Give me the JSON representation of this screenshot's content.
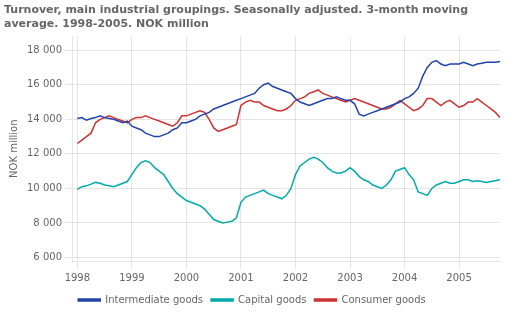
{
  "chart_data": {
    "type": "line",
    "title": [
      "Turnover, main industrial groupings. Seasonally adjusted. 3-month moving",
      "average. 1998-2005. NOK million"
    ],
    "ylabel": "NOK million",
    "x": [
      1998,
      1998.083333,
      1998.166667,
      1998.25,
      1998.333333,
      1998.416667,
      1998.5,
      1998.583333,
      1998.666667,
      1998.75,
      1998.833333,
      1998.916667,
      1999,
      1999.083333,
      1999.166667,
      1999.25,
      1999.333333,
      1999.416667,
      1999.5,
      1999.583333,
      1999.666667,
      1999.75,
      1999.833333,
      1999.916667,
      2000,
      2000.083333,
      2000.166667,
      2000.25,
      2000.333333,
      2000.416667,
      2000.5,
      2000.583333,
      2000.666667,
      2000.75,
      2000.833333,
      2000.916667,
      2001,
      2001.083333,
      2001.166667,
      2001.25,
      2001.333333,
      2001.416667,
      2001.5,
      2001.583333,
      2001.666667,
      2001.75,
      2001.833333,
      2001.916667,
      2002,
      2002.083333,
      2002.166667,
      2002.25,
      2002.333333,
      2002.416667,
      2002.5,
      2002.583333,
      2002.666667,
      2002.75,
      2002.833333,
      2002.916667,
      2003,
      2003.083333,
      2003.166667,
      2003.25,
      2003.333333,
      2003.416667,
      2003.5,
      2003.583333,
      2003.666667,
      2003.75,
      2003.833333,
      2003.916667,
      2004,
      2004.083333,
      2004.166667,
      2004.25,
      2004.333333,
      2004.416667,
      2004.5,
      2004.583333,
      2004.666667,
      2004.75,
      2004.833333,
      2004.916667,
      2005,
      2005.083333,
      2005.166667,
      2005.25,
      2005.333333,
      2005.416667,
      2005.5,
      2005.583333,
      2005.666667,
      2005.75
    ],
    "series": [
      {
        "name": "Intermediate goods",
        "color": "#2244aa",
        "values": [
          14050,
          14100,
          13950,
          14050,
          14100,
          14200,
          14100,
          14050,
          14000,
          13900,
          13800,
          13900,
          13600,
          13500,
          13400,
          13200,
          13100,
          13000,
          13000,
          13100,
          13200,
          13400,
          13500,
          13800,
          13800,
          13900,
          14000,
          14200,
          14300,
          14400,
          14600,
          14700,
          14800,
          14900,
          15000,
          15100,
          15200,
          15300,
          15400,
          15500,
          15800,
          16000,
          16100,
          15900,
          15800,
          15700,
          15600,
          15500,
          15200,
          15000,
          14900,
          14800,
          14900,
          15000,
          15100,
          15200,
          15200,
          15300,
          15200,
          15100,
          15100,
          14900,
          14300,
          14200,
          14300,
          14400,
          14500,
          14600,
          14700,
          14800,
          14900,
          15000,
          15200,
          15300,
          15500,
          15800,
          16500,
          17000,
          17300,
          17400,
          17200,
          17100,
          17200,
          17200,
          17200,
          17300,
          17200,
          17100,
          17200,
          17250,
          17300,
          17300,
          17300,
          17350
        ]
      },
      {
        "name": "Capital goods",
        "color": "#00aaaa",
        "values": [
          9950,
          10100,
          10150,
          10250,
          10350,
          10300,
          10200,
          10150,
          10100,
          10200,
          10300,
          10400,
          10800,
          11200,
          11500,
          11600,
          11500,
          11200,
          11000,
          10800,
          10400,
          10000,
          9700,
          9500,
          9300,
          9200,
          9100,
          9000,
          8800,
          8500,
          8200,
          8100,
          8000,
          8050,
          8100,
          8300,
          9200,
          9500,
          9600,
          9700,
          9800,
          9900,
          9700,
          9600,
          9500,
          9400,
          9600,
          10000,
          10800,
          11300,
          11500,
          11700,
          11800,
          11700,
          11500,
          11200,
          11000,
          10900,
          10900,
          11000,
          11200,
          11000,
          10700,
          10500,
          10400,
          10200,
          10100,
          10000,
          10200,
          10500,
          11000,
          11100,
          11200,
          10800,
          10500,
          9800,
          9700,
          9600,
          10000,
          10200,
          10300,
          10400,
          10300,
          10300,
          10400,
          10500,
          10500,
          10400,
          10450,
          10400,
          10350,
          10400,
          10450,
          10500
        ]
      },
      {
        "name": "Consumer goods",
        "color": "#cc3333",
        "values": [
          12600,
          12800,
          13000,
          13200,
          13800,
          14000,
          14100,
          14200,
          14100,
          14000,
          13900,
          13800,
          14000,
          14100,
          14100,
          14200,
          14100,
          14000,
          13900,
          13800,
          13700,
          13600,
          13800,
          14200,
          14200,
          14300,
          14400,
          14500,
          14400,
          14000,
          13500,
          13300,
          13400,
          13500,
          13600,
          13700,
          14800,
          15000,
          15100,
          15000,
          15000,
          14800,
          14700,
          14600,
          14500,
          14500,
          14600,
          14800,
          15100,
          15200,
          15300,
          15500,
          15600,
          15700,
          15500,
          15400,
          15300,
          15200,
          15100,
          15000,
          15100,
          15200,
          15100,
          15000,
          14900,
          14800,
          14700,
          14600,
          14600,
          14700,
          14900,
          15100,
          14900,
          14700,
          14500,
          14600,
          14800,
          15200,
          15200,
          15000,
          14800,
          15000,
          15100,
          14900,
          14700,
          14800,
          15000,
          15000,
          15200,
          15000,
          14800,
          14600,
          14400,
          14100
        ]
      }
    ],
    "xlim": [
      1997.92,
      2005.75
    ],
    "xticks": [
      1998,
      1999,
      2000,
      2001,
      2002,
      2003,
      2004,
      2005
    ],
    "ylim": [
      5800,
      18800
    ],
    "yticks": [
      {
        "value": 6000,
        "label": "6 000"
      },
      {
        "value": 8000,
        "label": "8 000"
      },
      {
        "value": 10000,
        "label": "10 000"
      },
      {
        "value": 12000,
        "label": "12 000"
      },
      {
        "value": 14000,
        "label": "14 000"
      },
      {
        "value": 16000,
        "label": "16 000"
      },
      {
        "value": 18000,
        "label": "18 000"
      }
    ],
    "grid": true,
    "legend": "bottom"
  }
}
